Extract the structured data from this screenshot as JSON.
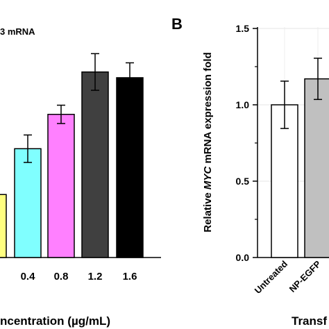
{
  "chart_data": [
    {
      "type": "bar",
      "panel_label": "",
      "title": "3 mRNA",
      "categories": [
        "",
        "0.4",
        "0.8",
        "1.2",
        "1.6"
      ],
      "values": [
        0.55,
        0.95,
        1.25,
        1.62,
        1.57
      ],
      "errors": [
        0.0,
        0.12,
        0.08,
        0.16,
        0.13
      ],
      "colors": [
        "#ffff80",
        "#80ffff",
        "#ff80ff",
        "#404040",
        "#000000"
      ],
      "xlabel": "ncentration (µg/mL)",
      "ylabel": "",
      "ylim": [
        0,
        2.0
      ],
      "grid": false
    },
    {
      "type": "bar",
      "panel_label": "B",
      "title": "",
      "categories": [
        "Untreated",
        "NP-EGFP"
      ],
      "values": [
        1.0,
        1.17
      ],
      "errors": [
        0.155,
        0.135
      ],
      "colors": [
        "#ffffff",
        "#c0c0c0"
      ],
      "xlabel": "Transf",
      "ylabel_parts": [
        "Relative ",
        "MYC",
        " mRNA expression fold"
      ],
      "yticks": [
        "0.0",
        "0.5",
        "1.0",
        "1.5"
      ],
      "ylim": [
        0,
        1.5
      ],
      "grid": true
    }
  ]
}
